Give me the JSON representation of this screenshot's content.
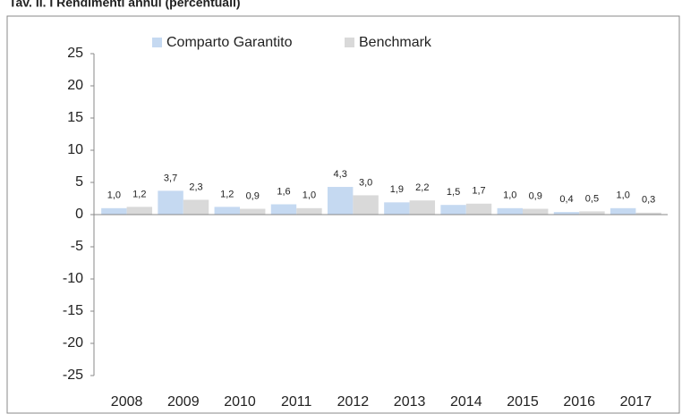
{
  "chart_data": {
    "type": "bar",
    "title": "Tav. II. I Rendimenti annui (percentuali)",
    "categories": [
      "2008",
      "2009",
      "2010",
      "2011",
      "2012",
      "2013",
      "2014",
      "2015",
      "2016",
      "2017"
    ],
    "series": [
      {
        "name": "Comparto Garantito",
        "color": "#c5d9f1",
        "values": [
          1.0,
          3.7,
          1.2,
          1.6,
          4.3,
          1.9,
          1.5,
          1.0,
          0.4,
          1.0
        ],
        "value_labels": [
          "1,0",
          "3,7",
          "1,2",
          "1,6",
          "4,3",
          "1,9",
          "1,5",
          "1,0",
          "0,4",
          "1,0"
        ]
      },
      {
        "name": "Benchmark",
        "color": "#d9d9d9",
        "values": [
          1.2,
          2.3,
          0.9,
          1.0,
          3.0,
          2.2,
          1.7,
          0.9,
          0.5,
          0.3
        ],
        "value_labels": [
          "1,2",
          "2,3",
          "0,9",
          "1,0",
          "3,0",
          "2,2",
          "1,7",
          "0,9",
          "0,5",
          "0,3"
        ]
      }
    ],
    "ylim": [
      -25,
      25
    ],
    "yticks": [
      -25,
      -20,
      -15,
      -10,
      -5,
      0,
      5,
      10,
      15,
      20,
      25
    ],
    "grid": false,
    "legend": "top"
  }
}
